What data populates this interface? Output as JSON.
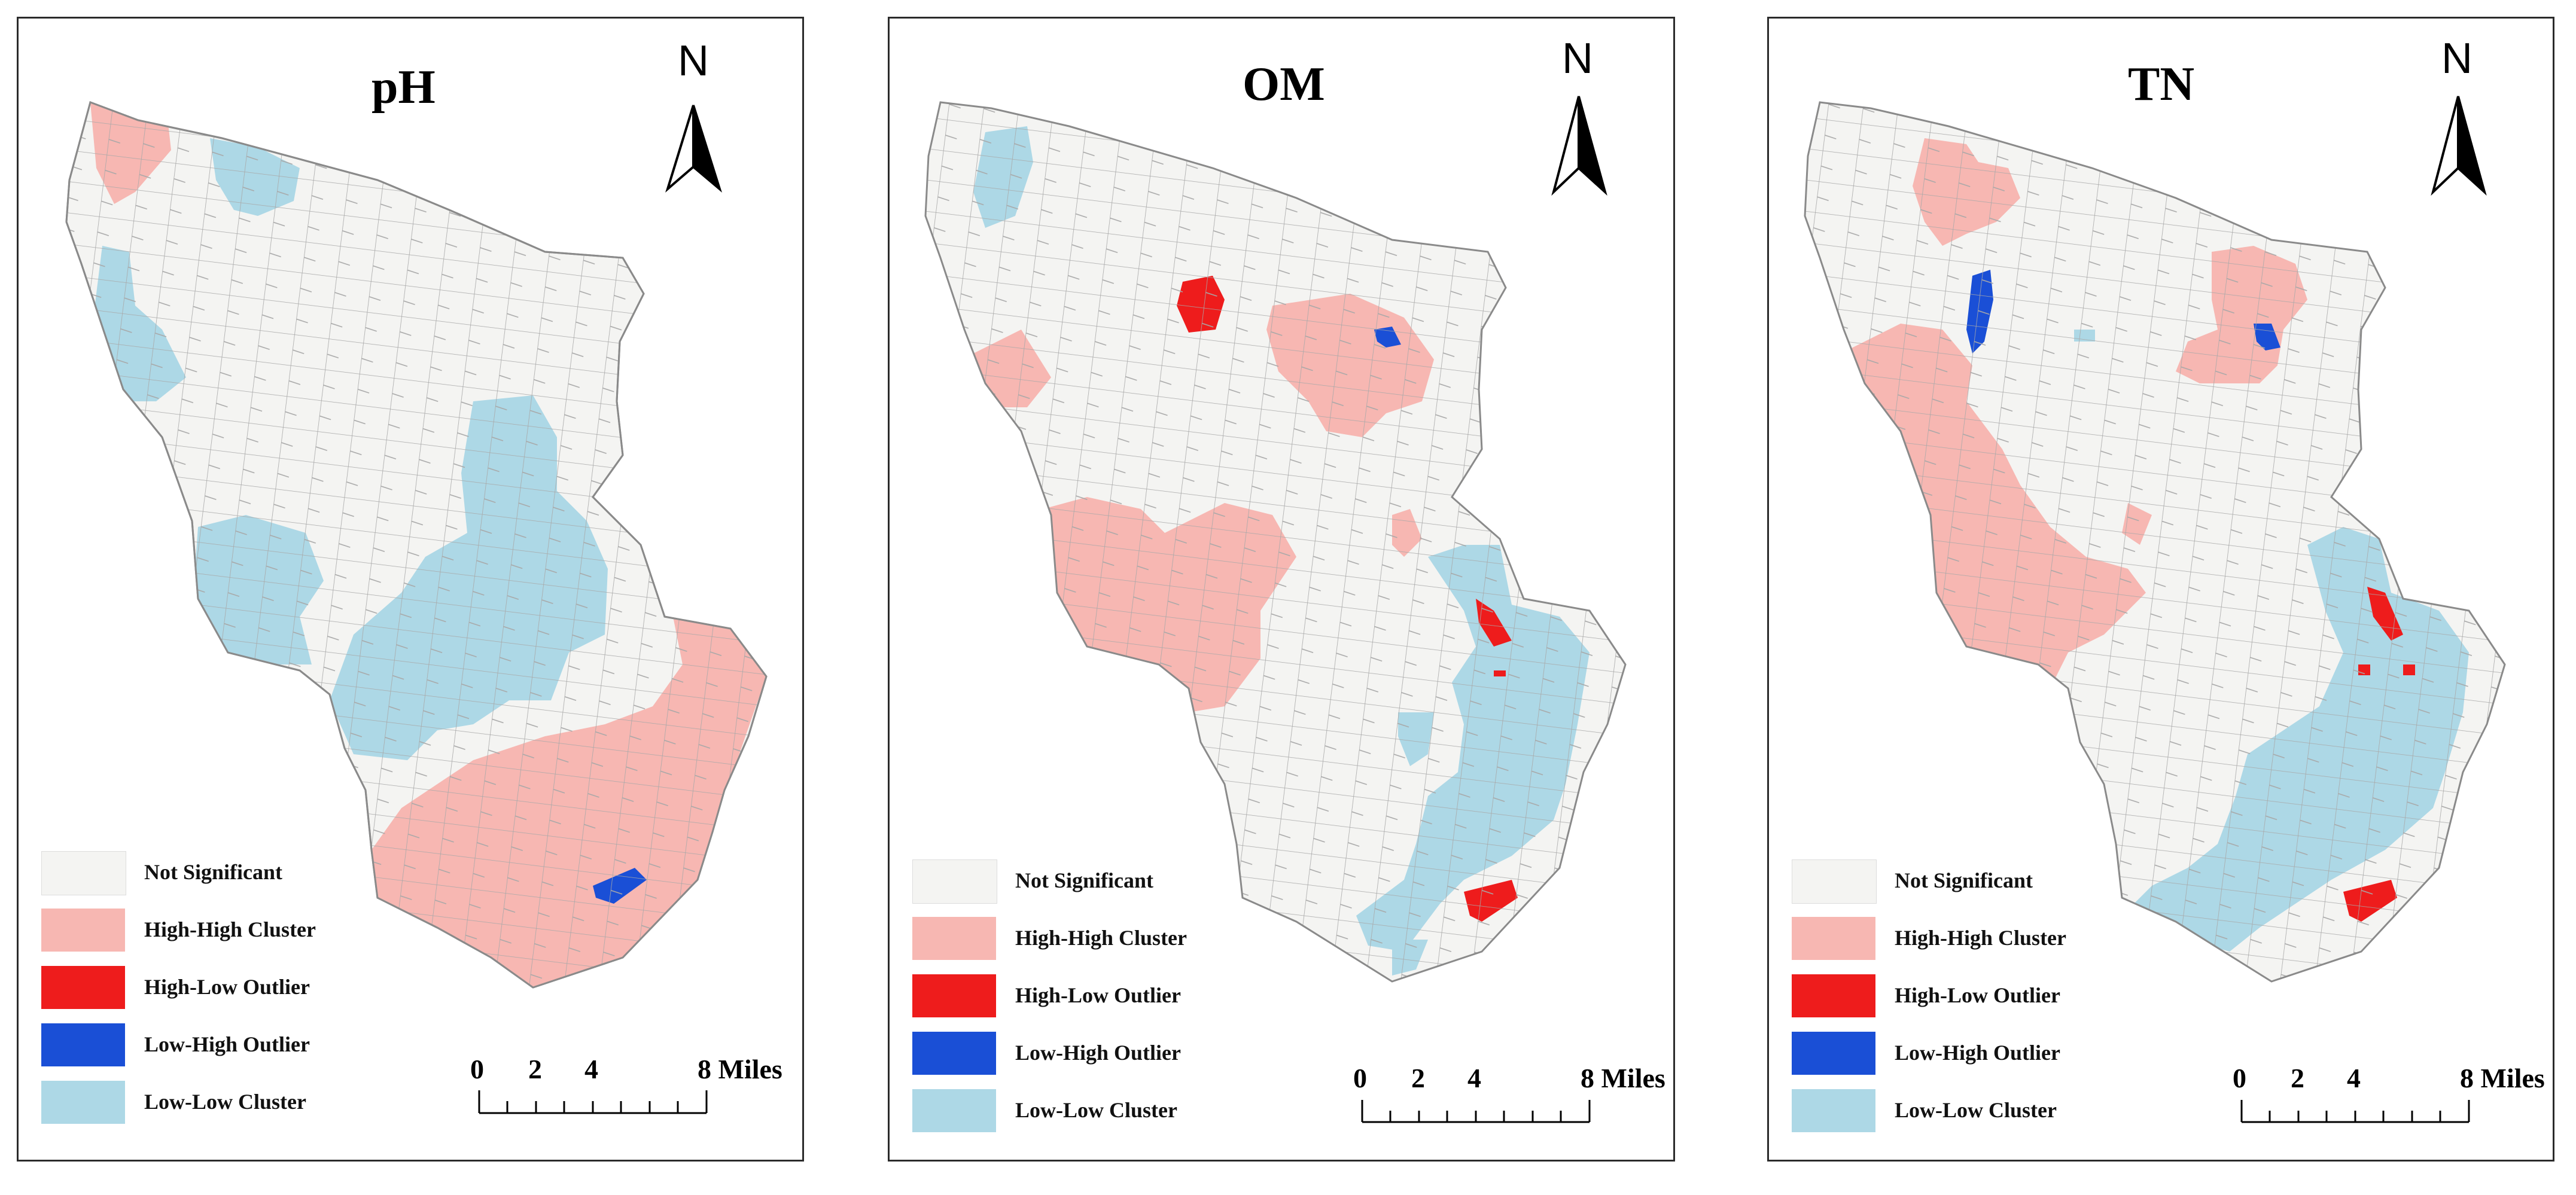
{
  "colors": {
    "not_significant": "#f4f4f2",
    "high_high": "#f7b7b2",
    "high_low": "#ee1c1c",
    "low_high": "#1a4fd6",
    "low_low": "#add8e6",
    "boundary": "#9a9a9a",
    "frame": "#2b2b2b"
  },
  "legend": {
    "items": [
      {
        "key": "not_significant",
        "label": "Not Significant"
      },
      {
        "key": "high_high",
        "label": "High-High Cluster"
      },
      {
        "key": "high_low",
        "label": "High-Low Outlier"
      },
      {
        "key": "low_high",
        "label": "Low-High Outlier"
      },
      {
        "key": "low_low",
        "label": "Low-Low Cluster"
      }
    ]
  },
  "north_arrow": {
    "label": "N",
    "icon": "north-arrow-icon"
  },
  "scale_bar": {
    "ticks": [
      "0",
      "2",
      "4",
      "8 Miles"
    ]
  },
  "panels": [
    {
      "id": "ph",
      "title": "pH"
    },
    {
      "id": "om",
      "title": "OM"
    },
    {
      "id": "tn",
      "title": "TN"
    }
  ]
}
